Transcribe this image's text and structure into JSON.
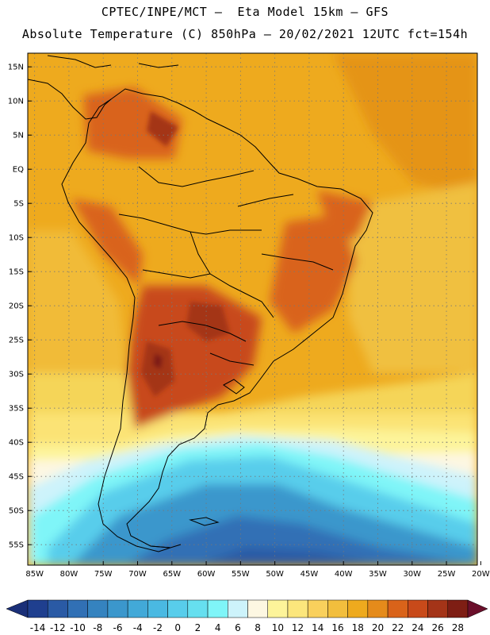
{
  "header": {
    "line1": "CPTEC/INPE/MCT –  Eta Model 15km – GFS",
    "line2": "Absolute Temperature (C) 850hPa – 20/02/2021 12UTC fct=154h"
  },
  "map": {
    "lat_labels": [
      "15N",
      "10N",
      "5N",
      "EQ",
      "5S",
      "10S",
      "15S",
      "20S",
      "25S",
      "30S",
      "35S",
      "40S",
      "45S",
      "50S",
      "55S"
    ],
    "lon_labels": [
      "85W",
      "80W",
      "75W",
      "70W",
      "65W",
      "60W",
      "55W",
      "50W",
      "45W",
      "40W",
      "35W",
      "30W",
      "25W",
      "20W"
    ],
    "lon_range": [
      -86,
      -20.5
    ],
    "lat_range": [
      -58,
      17
    ],
    "grid": "dotted"
  },
  "colorbar": {
    "labels": [
      "-14",
      "-12",
      "-10",
      "-8",
      "-6",
      "-4",
      "-2",
      "0",
      "2",
      "4",
      "6",
      "8",
      "10",
      "12",
      "14",
      "16",
      "18",
      "20",
      "22",
      "24",
      "26",
      "28"
    ],
    "colors": [
      "#1f3f8f",
      "#2a5aa5",
      "#3170b5",
      "#3583bf",
      "#3b97cc",
      "#42a9d8",
      "#4ab9e2",
      "#58cdeb",
      "#66dfef",
      "#7ff5f8",
      "#cdf3fb",
      "#fdf7e2",
      "#fdf49a",
      "#fce67c",
      "#f9d05c",
      "#f2be3d",
      "#eeaa1e",
      "#e58b1b",
      "#d9631a",
      "#c84a1a",
      "#a43418",
      "#7e1e14"
    ]
  }
}
